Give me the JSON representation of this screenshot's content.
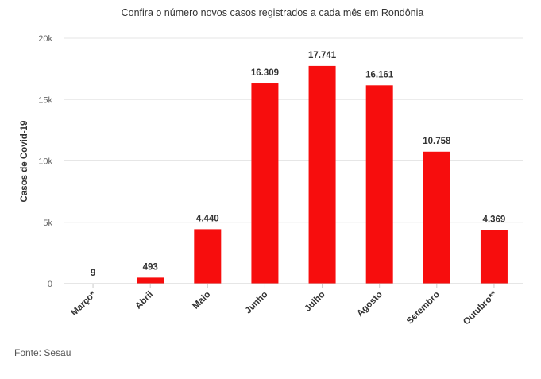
{
  "chart_data": {
    "type": "bar",
    "title": "Confira o número novos casos registrados a cada mês em Rondônia",
    "ylabel": "Casos de Covid-19",
    "xlabel": "",
    "categories": [
      "Março*",
      "Abril",
      "Maio",
      "Junho",
      "Julho",
      "Agosto",
      "Setembro",
      "Outubro**"
    ],
    "values": [
      9,
      493,
      4440,
      16309,
      17741,
      16161,
      10758,
      4369
    ],
    "data_labels": [
      "9",
      "493",
      "4.440",
      "16.309",
      "17.741",
      "16.161",
      "10.758",
      "4.369"
    ],
    "ylim": [
      0,
      20000
    ],
    "yticks": [
      0,
      5000,
      10000,
      15000,
      20000
    ],
    "ytick_labels": [
      "0",
      "5k",
      "10k",
      "15k",
      "20k"
    ],
    "grid": true,
    "legend": "none",
    "bar_color": "#f70d0d"
  },
  "source": "Fonte: Sesau"
}
